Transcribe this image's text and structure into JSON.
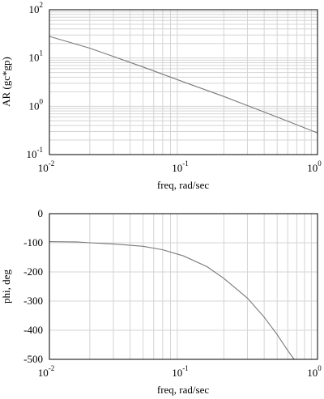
{
  "chart_data": [
    {
      "type": "line",
      "xscale": "log",
      "yscale": "log",
      "xlim": [
        0.01,
        1
      ],
      "ylim": [
        0.1,
        100
      ],
      "xlabel": "freq, rad/sec",
      "ylabel": "AR (gc*gp)",
      "x_ticks": [
        {
          "base": "10",
          "exp": "-2"
        },
        {
          "base": "10",
          "exp": "-1"
        },
        {
          "base": "10",
          "exp": "0"
        }
      ],
      "y_ticks": [
        {
          "base": "10",
          "exp": "-1"
        },
        {
          "base": "10",
          "exp": "0"
        },
        {
          "base": "10",
          "exp": "1"
        },
        {
          "base": "10",
          "exp": "2"
        }
      ],
      "grid": true,
      "series": [
        {
          "color": "#7a7a7a",
          "x": [
            0.01,
            0.02,
            0.05,
            0.1,
            0.2,
            0.5,
            1.0
          ],
          "y": [
            28,
            16,
            6.5,
            3.2,
            1.6,
            0.6,
            0.28
          ]
        }
      ]
    },
    {
      "type": "line",
      "xscale": "log",
      "yscale": "linear",
      "xlim": [
        0.01,
        1
      ],
      "ylim": [
        -500,
        0
      ],
      "xlabel": "freq, rad/sec",
      "ylabel": "phi, deg",
      "x_ticks": [
        {
          "base": "10",
          "exp": "-2"
        },
        {
          "base": "10",
          "exp": "-1"
        },
        {
          "base": "10",
          "exp": "0"
        }
      ],
      "y_ticks": [
        "0",
        "-100",
        "-200",
        "-300",
        "-400",
        "-500"
      ],
      "grid": true,
      "series": [
        {
          "color": "#7a7a7a",
          "x": [
            0.01,
            0.016,
            0.02,
            0.03,
            0.05,
            0.07,
            0.1,
            0.15,
            0.2,
            0.3,
            0.4,
            0.5,
            0.6,
            0.67
          ],
          "y": [
            -96,
            -97,
            -100,
            -104,
            -112,
            -124,
            -145,
            -182,
            -222,
            -290,
            -355,
            -415,
            -470,
            -500
          ]
        }
      ]
    }
  ]
}
